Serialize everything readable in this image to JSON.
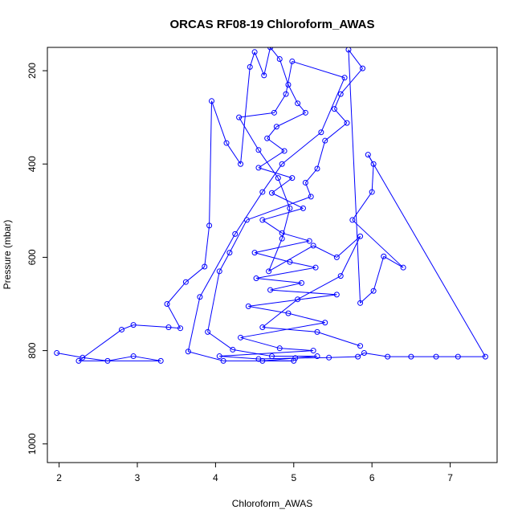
{
  "chart_data": {
    "type": "line",
    "title": "ORCAS RF08-19 Chloroform_AWAS",
    "xlabel": "Chloroform_AWAS",
    "ylabel": "Pressure (mbar)",
    "xlim": [
      1.85,
      7.6
    ],
    "ylim": [
      1040,
      150
    ],
    "y_reversed": true,
    "x_ticks": [
      2,
      3,
      4,
      5,
      6,
      7
    ],
    "y_ticks": [
      200,
      400,
      600,
      800,
      1000
    ],
    "grid": false,
    "colors": {
      "series": "#0000ff",
      "axis": "#000000"
    },
    "series": [
      {
        "marker": "open-circle",
        "points": [
          [
            1.97,
            805
          ],
          [
            2.3,
            815
          ],
          [
            2.62,
            822
          ],
          [
            2.95,
            812
          ],
          [
            3.3,
            822
          ],
          [
            2.25,
            822
          ],
          [
            2.8,
            755
          ],
          [
            2.95,
            745
          ],
          [
            3.4,
            750
          ],
          [
            3.55,
            752
          ],
          [
            3.38,
            700
          ],
          [
            3.62,
            653
          ],
          [
            3.86,
            620
          ],
          [
            3.92,
            532
          ],
          [
            3.95,
            265
          ],
          [
            4.14,
            355
          ],
          [
            4.32,
            400
          ],
          [
            4.44,
            192
          ],
          [
            4.5,
            160
          ],
          [
            4.62,
            210
          ],
          [
            4.7,
            150
          ],
          [
            4.82,
            175
          ],
          [
            4.93,
            230
          ],
          [
            5.05,
            270
          ],
          [
            5.15,
            290
          ],
          [
            4.78,
            320
          ],
          [
            4.66,
            345
          ],
          [
            4.88,
            372
          ],
          [
            4.55,
            408
          ],
          [
            4.98,
            430
          ],
          [
            4.72,
            462
          ],
          [
            5.12,
            495
          ],
          [
            4.6,
            520
          ],
          [
            4.85,
            548
          ],
          [
            5.2,
            565
          ],
          [
            4.5,
            590
          ],
          [
            4.95,
            610
          ],
          [
            5.28,
            622
          ],
          [
            4.52,
            645
          ],
          [
            5.1,
            655
          ],
          [
            4.7,
            670
          ],
          [
            5.55,
            680
          ],
          [
            4.42,
            705
          ],
          [
            4.93,
            720
          ],
          [
            5.4,
            740
          ],
          [
            4.32,
            772
          ],
          [
            4.82,
            795
          ],
          [
            5.25,
            800
          ],
          [
            4.05,
            812
          ],
          [
            4.55,
            818
          ],
          [
            5.02,
            816
          ],
          [
            5.45,
            815
          ],
          [
            5.82,
            813
          ],
          [
            5.9,
            805
          ],
          [
            6.2,
            813
          ],
          [
            6.5,
            813
          ],
          [
            6.82,
            813
          ],
          [
            7.1,
            813
          ],
          [
            7.45,
            813
          ],
          [
            5.95,
            380
          ],
          [
            6.02,
            400
          ],
          [
            6.0,
            460
          ],
          [
            5.75,
            520
          ],
          [
            6.4,
            622
          ],
          [
            6.15,
            598
          ],
          [
            6.02,
            672
          ],
          [
            5.85,
            698
          ],
          [
            5.7,
            155
          ],
          [
            5.88,
            195
          ],
          [
            5.6,
            250
          ],
          [
            5.52,
            282
          ],
          [
            5.68,
            312
          ],
          [
            5.4,
            350
          ],
          [
            5.3,
            410
          ],
          [
            5.15,
            440
          ],
          [
            5.22,
            470
          ],
          [
            4.4,
            520
          ],
          [
            4.18,
            590
          ],
          [
            4.05,
            630
          ],
          [
            3.9,
            760
          ],
          [
            4.22,
            798
          ],
          [
            4.72,
            812
          ],
          [
            5.3,
            812
          ],
          [
            4.6,
            822
          ],
          [
            5.0,
            822
          ],
          [
            4.1,
            822
          ],
          [
            3.65,
            802
          ],
          [
            3.8,
            685
          ],
          [
            4.25,
            550
          ],
          [
            4.6,
            460
          ],
          [
            4.85,
            400
          ],
          [
            5.35,
            332
          ],
          [
            5.65,
            215
          ],
          [
            4.98,
            180
          ],
          [
            4.9,
            250
          ],
          [
            4.75,
            290
          ],
          [
            4.3,
            300
          ],
          [
            4.55,
            370
          ],
          [
            4.8,
            430
          ],
          [
            4.95,
            495
          ],
          [
            4.85,
            560
          ],
          [
            4.68,
            630
          ],
          [
            5.25,
            575
          ],
          [
            5.55,
            600
          ],
          [
            5.85,
            555
          ],
          [
            5.6,
            640
          ],
          [
            5.05,
            690
          ],
          [
            4.6,
            750
          ],
          [
            5.3,
            760
          ],
          [
            5.85,
            790
          ]
        ]
      }
    ]
  }
}
